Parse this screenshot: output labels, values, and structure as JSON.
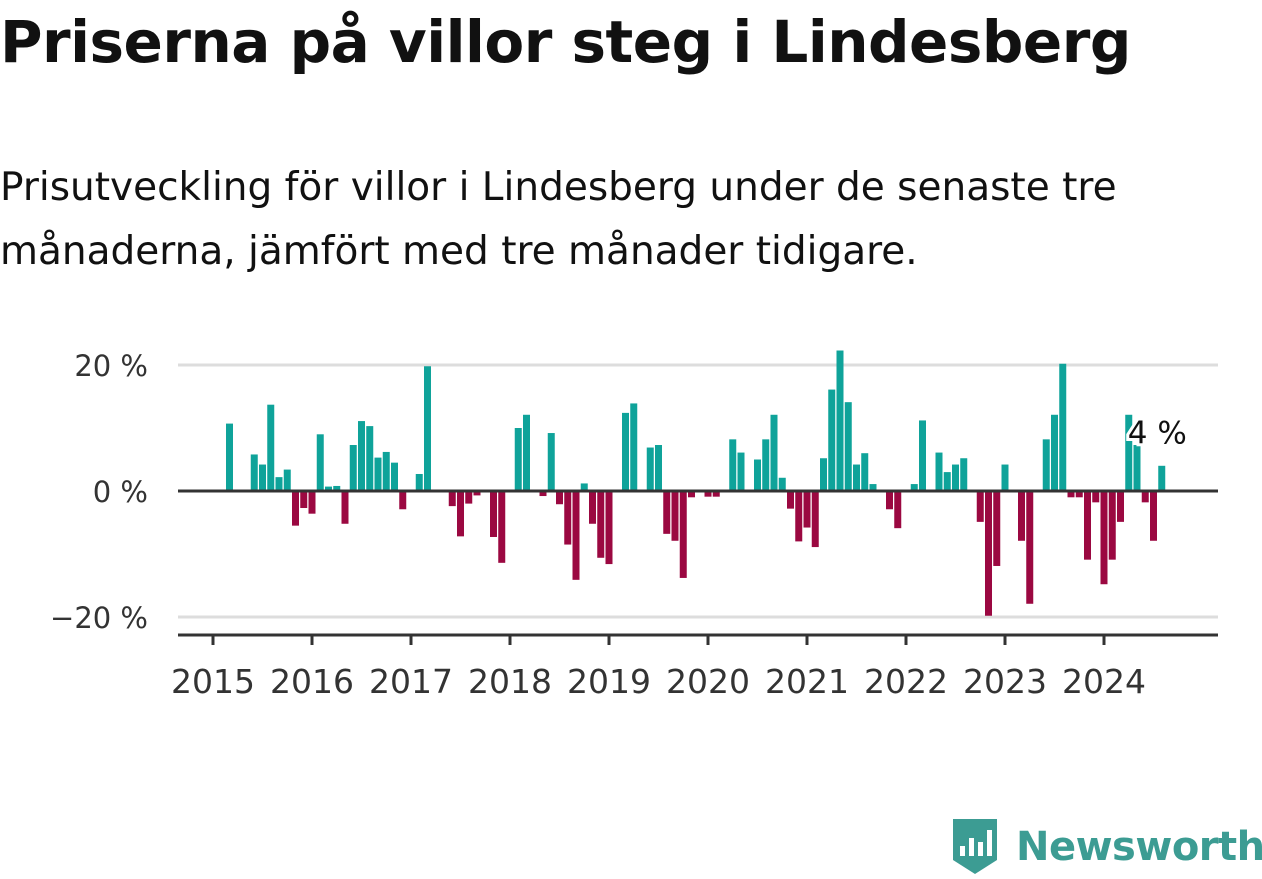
{
  "header": {
    "title": "Priserna på villor steg i Lindesberg",
    "subtitle": "Prisutveckling för villor i Lindesberg under de senaste tre månaderna, jämfört med tre månader tidigare."
  },
  "brand": {
    "name": "Newsworthy",
    "icon": "newsworthy-logo-icon",
    "color": "#3c9c93"
  },
  "colors": {
    "positive": "#0fa39a",
    "negative": "#9b0841",
    "axis": "#333333",
    "grid": "#dddddd"
  },
  "chart_data": {
    "type": "bar",
    "x_start": "2015-01",
    "frequency": "monthly",
    "ylim": [
      -22,
      22
    ],
    "y_ticks": [
      -20,
      0,
      20
    ],
    "y_tick_labels": [
      "−20 %",
      "0 %",
      "20 %"
    ],
    "x_ticks": [
      "2015",
      "2016",
      "2017",
      "2018",
      "2019",
      "2020",
      "2021",
      "2022",
      "2023",
      "2024"
    ],
    "annotation": {
      "label": "4 %",
      "x": "2024-08",
      "value": 4
    },
    "values": [
      null,
      null,
      10.7,
      null,
      null,
      5.8,
      4.2,
      13.7,
      2.2,
      3.4,
      -5.5,
      -2.7,
      -3.6,
      9.0,
      0.7,
      0.8,
      -5.2,
      7.3,
      11.1,
      10.3,
      5.3,
      6.2,
      4.5,
      -2.9,
      null,
      2.7,
      19.8,
      null,
      null,
      -2.4,
      -7.2,
      -2.0,
      -0.7,
      null,
      -7.3,
      -11.4,
      null,
      10.0,
      12.1,
      null,
      -0.8,
      9.2,
      -2.1,
      -8.5,
      -14.1,
      1.2,
      -5.2,
      -10.6,
      -11.6,
      null,
      12.4,
      13.9,
      null,
      6.9,
      7.3,
      -6.8,
      -7.9,
      -13.8,
      -1.0,
      null,
      -0.9,
      -0.9,
      null,
      8.2,
      6.1,
      null,
      5.0,
      8.2,
      12.1,
      2.1,
      -2.8,
      -8.0,
      -5.8,
      -8.9,
      5.2,
      16.1,
      22.3,
      14.1,
      4.2,
      6.0,
      1.1,
      null,
      -2.9,
      -5.9,
      null,
      1.1,
      11.2,
      null,
      6.1,
      3.0,
      4.2,
      5.2,
      null,
      -4.9,
      -19.8,
      -11.9,
      4.2,
      null,
      -7.9,
      -17.9,
      null,
      8.2,
      12.1,
      20.2,
      -1.0,
      -1.0,
      -10.9,
      -1.8,
      -14.8,
      -10.9,
      -4.9,
      12.1,
      7.3,
      -1.8,
      -7.9,
      4.0
    ]
  }
}
